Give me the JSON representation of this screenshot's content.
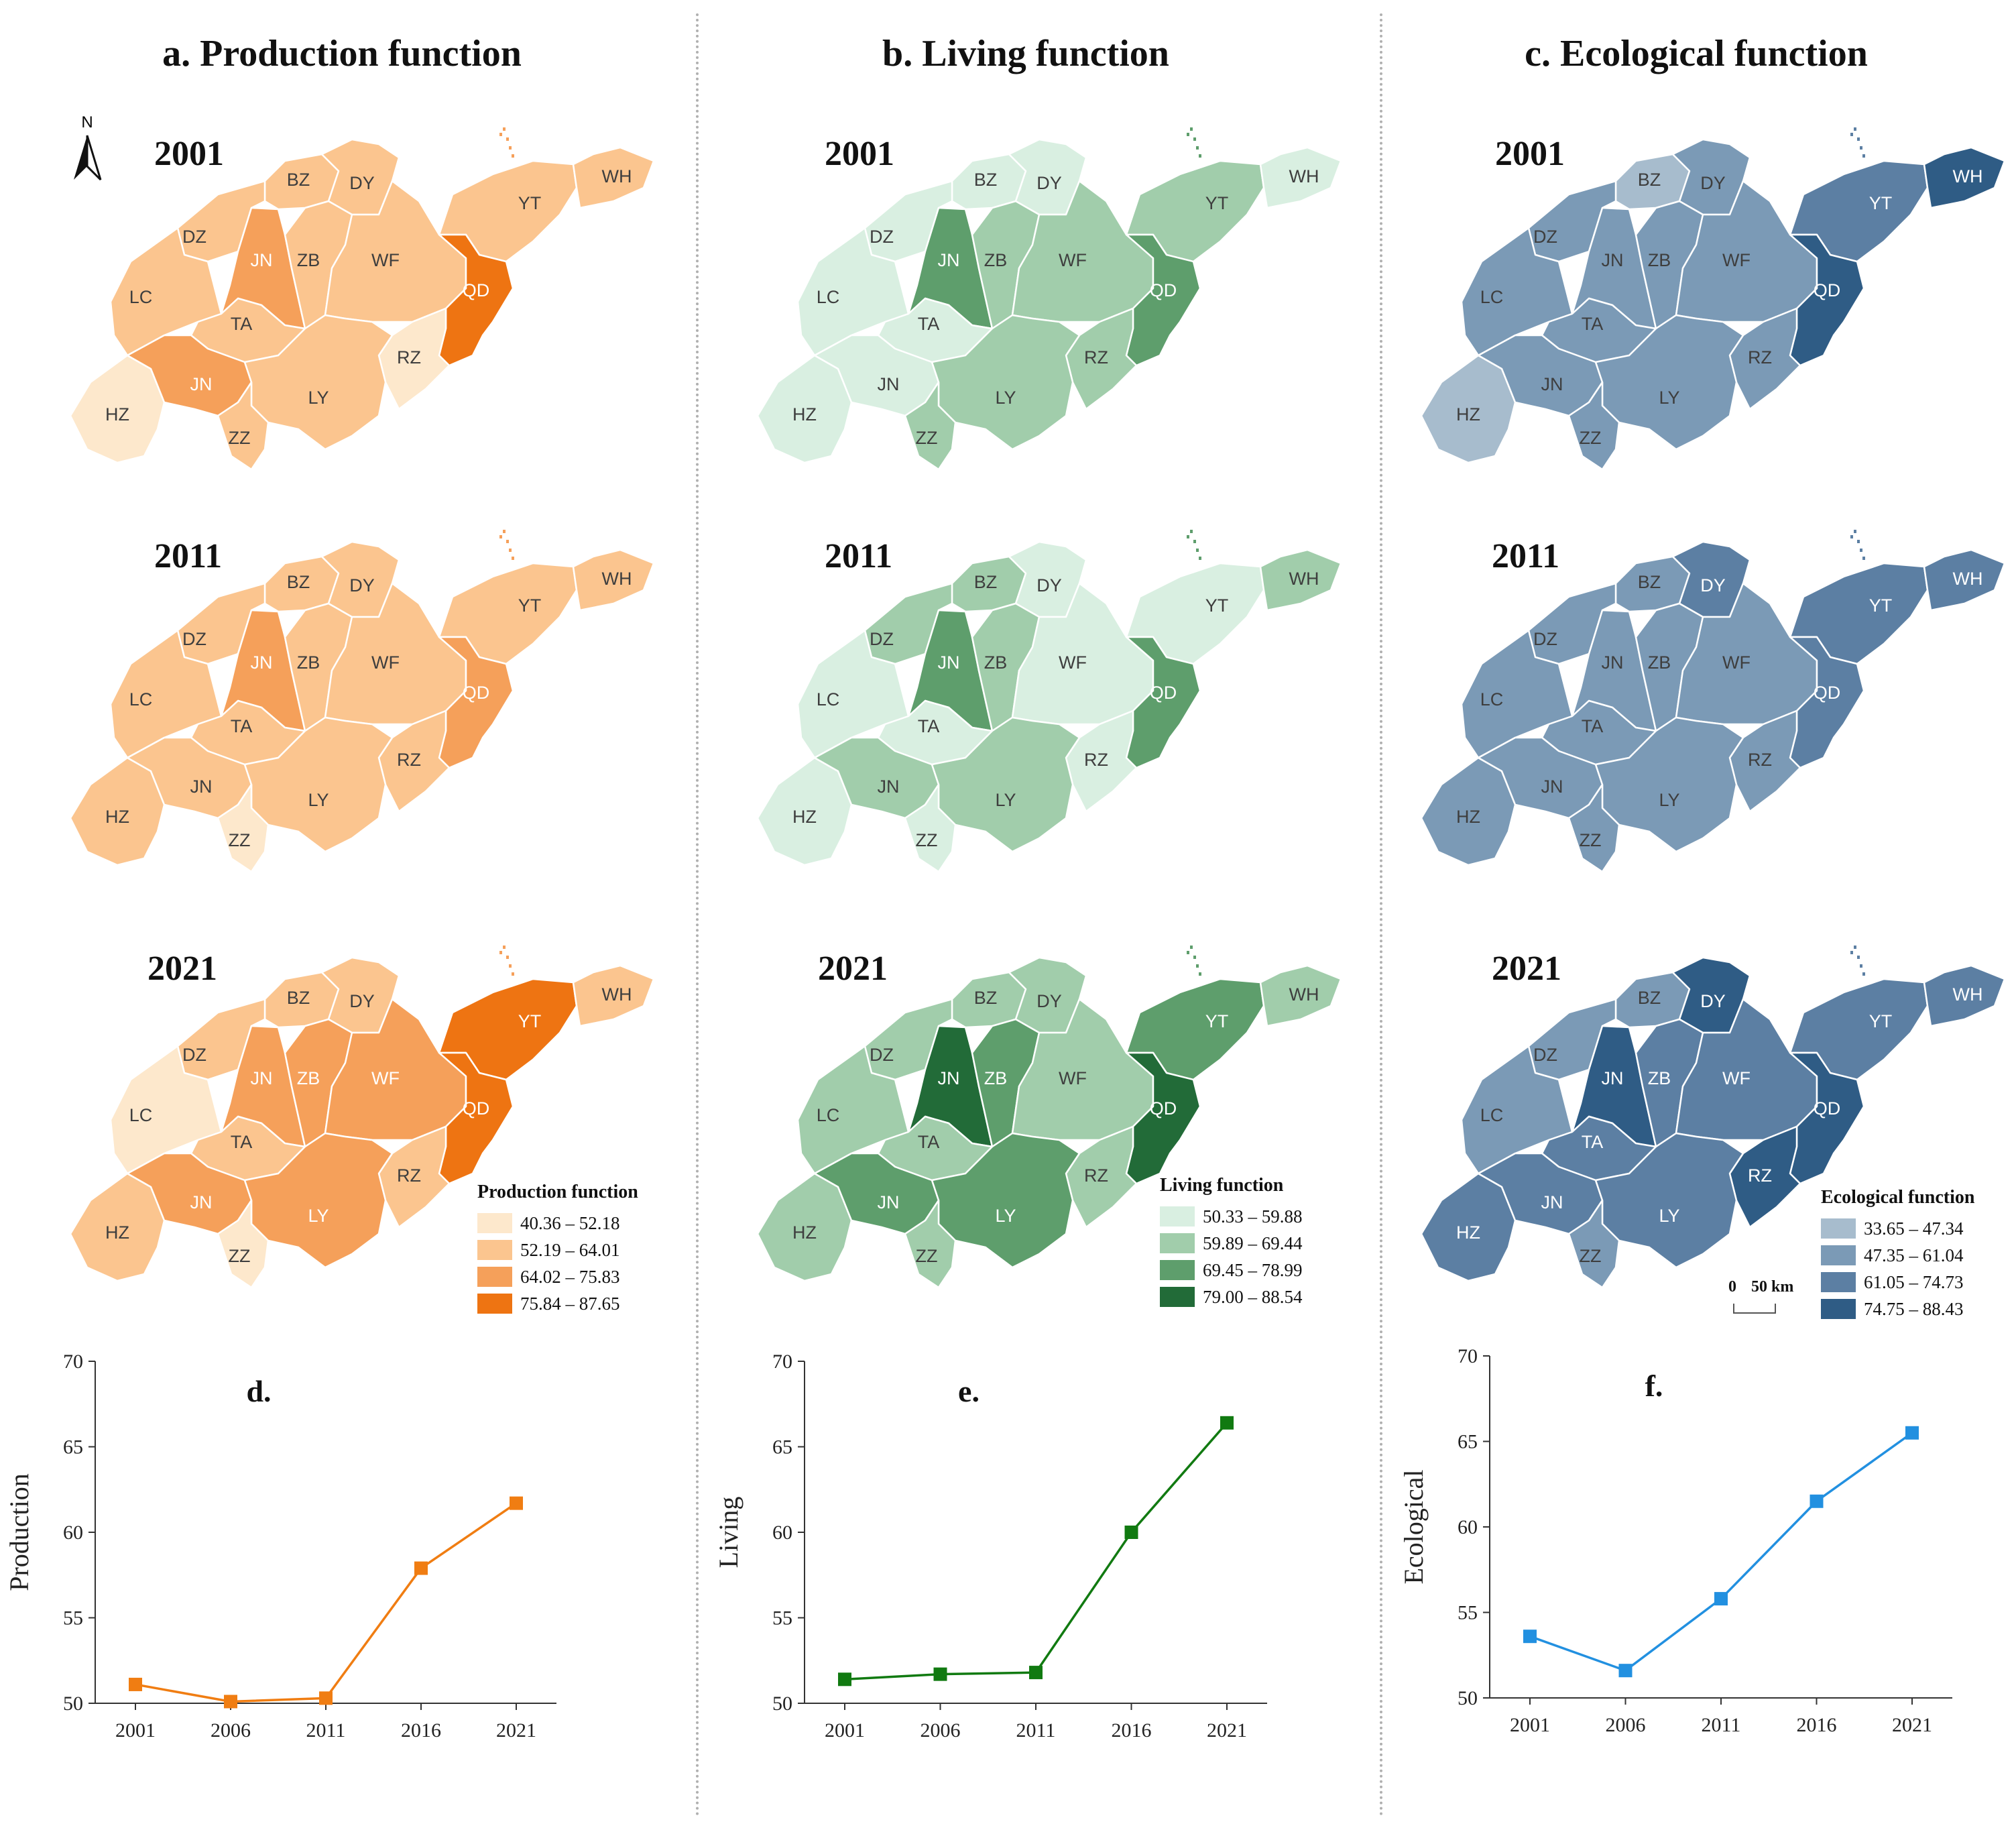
{
  "panels": [
    {
      "id": "a",
      "title": "a. Production function",
      "legend_title": "Production function",
      "legend": [
        {
          "label": "40.36 – 52.18",
          "color": "#fde8cc"
        },
        {
          "label": "52.19 – 64.01",
          "color": "#fbc58f"
        },
        {
          "label": "64.02 – 75.83",
          "color": "#f5a05a"
        },
        {
          "label": "75.84 – 87.65",
          "color": "#ee7412"
        }
      ],
      "maps": [
        {
          "year": "2001",
          "classes": {
            "BZ": 2,
            "DY": 2,
            "DZ": 2,
            "YT": 2,
            "WH": 2,
            "JN": 3,
            "ZB": 2,
            "WF": 2,
            "QD": 4,
            "LC": 2,
            "TA": 2,
            "RZ": 1,
            "HZ": 1,
            "JNsw": 3,
            "LY": 2,
            "ZZ": 2
          }
        },
        {
          "year": "2011",
          "classes": {
            "BZ": 2,
            "DY": 2,
            "DZ": 2,
            "YT": 2,
            "WH": 2,
            "JN": 3,
            "ZB": 2,
            "WF": 2,
            "QD": 3,
            "LC": 2,
            "TA": 2,
            "RZ": 2,
            "HZ": 2,
            "JNsw": 2,
            "LY": 2,
            "ZZ": 1
          }
        },
        {
          "year": "2021",
          "classes": {
            "BZ": 2,
            "DY": 2,
            "DZ": 2,
            "YT": 4,
            "WH": 2,
            "JN": 3,
            "ZB": 3,
            "WF": 3,
            "QD": 4,
            "LC": 1,
            "TA": 2,
            "RZ": 2,
            "HZ": 2,
            "JNsw": 3,
            "LY": 3,
            "ZZ": 1
          }
        }
      ]
    },
    {
      "id": "b",
      "title": "b. Living function",
      "legend_title": "Living function",
      "legend": [
        {
          "label": "50.33 – 59.88",
          "color": "#d9efe1"
        },
        {
          "label": "59.89 – 69.44",
          "color": "#a1cdab"
        },
        {
          "label": "69.45 – 78.99",
          "color": "#5e9e6c"
        },
        {
          "label": "79.00 – 88.54",
          "color": "#226b38"
        }
      ],
      "maps": [
        {
          "year": "2001",
          "classes": {
            "BZ": 1,
            "DY": 1,
            "DZ": 1,
            "YT": 2,
            "WH": 1,
            "JN": 3,
            "ZB": 2,
            "WF": 2,
            "QD": 3,
            "LC": 1,
            "TA": 1,
            "RZ": 2,
            "HZ": 1,
            "JNsw": 1,
            "LY": 2,
            "ZZ": 2
          }
        },
        {
          "year": "2011",
          "classes": {
            "BZ": 2,
            "DY": 1,
            "DZ": 2,
            "YT": 1,
            "WH": 2,
            "JN": 3,
            "ZB": 2,
            "WF": 1,
            "QD": 3,
            "LC": 1,
            "TA": 1,
            "RZ": 1,
            "HZ": 1,
            "JNsw": 2,
            "LY": 2,
            "ZZ": 1
          }
        },
        {
          "year": "2021",
          "classes": {
            "BZ": 2,
            "DY": 2,
            "DZ": 2,
            "YT": 3,
            "WH": 2,
            "JN": 4,
            "ZB": 3,
            "WF": 2,
            "QD": 4,
            "LC": 2,
            "TA": 2,
            "RZ": 2,
            "HZ": 2,
            "JNsw": 3,
            "LY": 3,
            "ZZ": 2
          }
        }
      ]
    },
    {
      "id": "c",
      "title": "c. Ecological function",
      "legend_title": "Ecological function",
      "legend": [
        {
          "label": "33.65 – 47.34",
          "color": "#a7bccd"
        },
        {
          "label": "47.35 – 61.04",
          "color": "#7b9ab6"
        },
        {
          "label": "61.05 – 74.73",
          "color": "#5c7fa3"
        },
        {
          "label": "74.75 – 88.43",
          "color": "#2f5c85"
        }
      ],
      "maps": [
        {
          "year": "2001",
          "classes": {
            "BZ": 1,
            "DY": 2,
            "DZ": 2,
            "YT": 3,
            "WH": 4,
            "JN": 2,
            "ZB": 2,
            "WF": 2,
            "QD": 4,
            "LC": 2,
            "TA": 2,
            "RZ": 2,
            "HZ": 1,
            "JNsw": 2,
            "LY": 2,
            "ZZ": 2
          }
        },
        {
          "year": "2011",
          "classes": {
            "BZ": 2,
            "DY": 3,
            "DZ": 2,
            "YT": 3,
            "WH": 3,
            "JN": 2,
            "ZB": 2,
            "WF": 2,
            "QD": 3,
            "LC": 2,
            "TA": 2,
            "RZ": 2,
            "HZ": 2,
            "JNsw": 2,
            "LY": 2,
            "ZZ": 2
          }
        },
        {
          "year": "2021",
          "classes": {
            "BZ": 2,
            "DY": 4,
            "DZ": 2,
            "YT": 3,
            "WH": 3,
            "JN": 4,
            "ZB": 3,
            "WF": 3,
            "QD": 4,
            "LC": 2,
            "TA": 3,
            "RZ": 4,
            "HZ": 3,
            "JNsw": 3,
            "LY": 3,
            "ZZ": 2
          }
        }
      ]
    }
  ],
  "region_labels": {
    "BZ": "BZ",
    "DY": "DY",
    "DZ": "DZ",
    "YT": "YT",
    "WH": "WH",
    "JN": "JN",
    "ZB": "ZB",
    "WF": "WF",
    "QD": "QD",
    "LC": "LC",
    "TA": "TA",
    "RZ": "RZ",
    "HZ": "HZ",
    "JNsw": "JN",
    "LY": "LY",
    "ZZ": "ZZ"
  },
  "no_data_color": "#e8e8e8",
  "north_label": "N",
  "scale": {
    "zero": "0",
    "label": "50 km"
  },
  "chart_data": [
    {
      "type": "line",
      "title": "d.",
      "ylabel": "Production",
      "xlabel": "",
      "x": [
        "2001",
        "2006",
        "2011",
        "2016",
        "2021"
      ],
      "values": [
        51.1,
        50.1,
        50.3,
        57.9,
        61.7
      ],
      "ylim": [
        50,
        70
      ],
      "yticks": [
        "50",
        "55",
        "60",
        "65",
        "70"
      ],
      "color": "#f07d12"
    },
    {
      "type": "line",
      "title": "e.",
      "ylabel": "Living",
      "xlabel": "",
      "x": [
        "2001",
        "2006",
        "2011",
        "2016",
        "2021"
      ],
      "values": [
        51.4,
        51.7,
        51.8,
        60.0,
        66.4
      ],
      "ylim": [
        50,
        70
      ],
      "yticks": [
        "50",
        "55",
        "60",
        "65",
        "70"
      ],
      "color": "#117a11"
    },
    {
      "type": "line",
      "title": "f.",
      "ylabel": "Ecological",
      "xlabel": "",
      "x": [
        "2001",
        "2006",
        "2011",
        "2016",
        "2021"
      ],
      "values": [
        53.6,
        51.6,
        55.8,
        61.5,
        65.5
      ],
      "ylim": [
        50,
        70
      ],
      "yticks": [
        "50",
        "55",
        "60",
        "65",
        "70"
      ],
      "color": "#2290e0"
    }
  ]
}
